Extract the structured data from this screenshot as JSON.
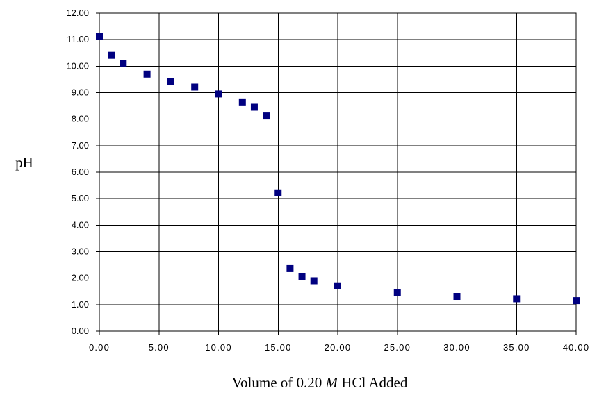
{
  "chart_data": {
    "type": "scatter",
    "title": "",
    "xlabel": {
      "before": "Volume of 0.20 ",
      "italic": "M",
      "after": " HCl Added"
    },
    "ylabel": "pH",
    "xlim": [
      0,
      40
    ],
    "ylim": [
      0,
      12
    ],
    "x_ticks": [
      "0.00",
      "5.00",
      "10.00",
      "15.00",
      "20.00",
      "25.00",
      "30.00",
      "35.00",
      "40.00"
    ],
    "y_ticks": [
      "0.00",
      "1.00",
      "2.00",
      "3.00",
      "4.00",
      "5.00",
      "6.00",
      "7.00",
      "8.00",
      "9.00",
      "10.00",
      "11.00",
      "12.00"
    ],
    "grid": true,
    "marker": "square",
    "marker_color": "#000080",
    "series": [
      {
        "x": [
          0,
          1,
          2,
          4,
          6,
          8,
          10,
          12,
          13,
          14,
          15,
          16,
          17,
          18,
          20,
          25,
          30,
          35,
          40
        ],
        "y": [
          11.12,
          10.41,
          10.09,
          9.7,
          9.43,
          9.21,
          8.95,
          8.65,
          8.45,
          8.12,
          5.22,
          2.36,
          2.07,
          1.9,
          1.71,
          1.45,
          1.31,
          1.22,
          1.15
        ]
      }
    ]
  }
}
